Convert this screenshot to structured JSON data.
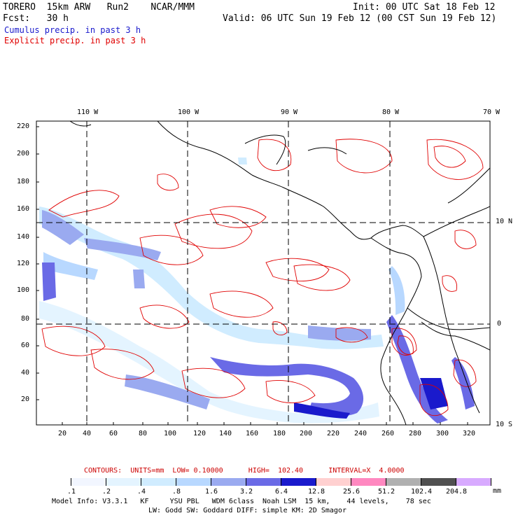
{
  "header": {
    "model": "TORERO  15km ARW   Run2    NCAR/MMM",
    "init": "Init: 00 UTC Sat 18 Feb 12",
    "fcst": "Fcst:   30 h",
    "valid": "Valid: 06 UTC Sun 19 Feb 12 (00 CST Sun 19 Feb 12)",
    "legend_cumulus": "Cumulus precip. in past 3 h",
    "legend_explicit": "Explicit precip. in past 3 h",
    "cumulus_color": "#1a1acc",
    "explicit_color": "#e00000"
  },
  "map": {
    "lon_labels": [
      "110 W",
      "100 W",
      "90 W",
      "80 W",
      "70 W"
    ],
    "lat_labels": [
      "10 N",
      "0",
      "10 S"
    ],
    "x_ticks": [
      "20",
      "40",
      "60",
      "80",
      "100",
      "120",
      "140",
      "160",
      "180",
      "200",
      "220",
      "240",
      "260",
      "280",
      "300",
      "320"
    ],
    "y_ticks": [
      "220",
      "200",
      "180",
      "160",
      "140",
      "120",
      "100",
      "80",
      "60",
      "40",
      "20"
    ]
  },
  "contours": {
    "text": "CONTOURS:  UNITS=mm  LOW= 0.10000      HIGH=  102.40      INTERVAL=X  4.0000",
    "color": "#cc0000"
  },
  "scale": {
    "labels": [
      ".1",
      ".2",
      ".4",
      ".8",
      "1.6",
      "3.2",
      "6.4",
      "12.8",
      "25.6",
      "51.2",
      "102.4",
      "204.8"
    ],
    "unit": "mm",
    "colors": [
      "#ffffff",
      "#f2f6ff",
      "#e4f4ff",
      "#d0ecff",
      "#b8d8ff",
      "#9aaaf0",
      "#6a6ae6",
      "#1a1acc",
      "#ffd0d0",
      "#ff88c0",
      "#b0b0b0",
      "#505050",
      "#d8aaff"
    ]
  },
  "footer": {
    "line1": "Model Info: V3.3.1   KF     YSU PBL   WDM 6class  Noah LSM  15 km,    44 levels,    78 sec",
    "line2": "LW: Godd SW: Goddard DIFF: simple KM: 2D Smagor"
  }
}
